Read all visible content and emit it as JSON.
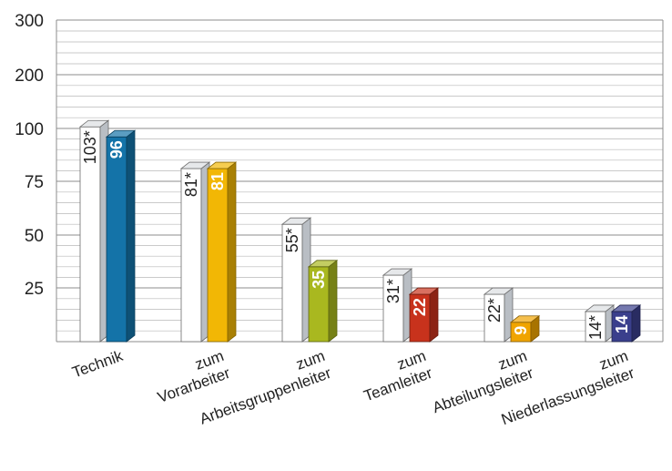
{
  "chart_data": {
    "type": "bar",
    "axis": {
      "y_tick_labels": [
        "25",
        "50",
        "75",
        "100",
        "200",
        "300"
      ],
      "y_scale": "broken (25-unit steps up to 100, then 100-unit steps to 300)"
    },
    "grid": true,
    "categories": [
      [
        "Technik"
      ],
      [
        "zum",
        "Vorarbeiter"
      ],
      [
        "zum",
        "Arbeitsgruppenleiter"
      ],
      [
        "zum",
        "Teamleiter"
      ],
      [
        "zum",
        "Abteilungsleiter"
      ],
      [
        "zum",
        "Niederlassungsleiter"
      ]
    ],
    "series": [
      {
        "values": [
          103,
          81,
          55,
          31,
          22,
          14
        ],
        "labels": [
          "103*",
          "81*",
          "55*",
          "31*",
          "22*",
          "14*"
        ],
        "color": "#ffffff"
      },
      {
        "values": [
          96,
          81,
          35,
          22,
          9,
          14
        ],
        "labels": [
          "96",
          "81",
          "35",
          "22",
          "9",
          "14"
        ],
        "colors": [
          "#1473a8",
          "#f2b705",
          "#a9b81f",
          "#c8321c",
          "#f0a400",
          "#3a3f8c"
        ]
      }
    ]
  }
}
